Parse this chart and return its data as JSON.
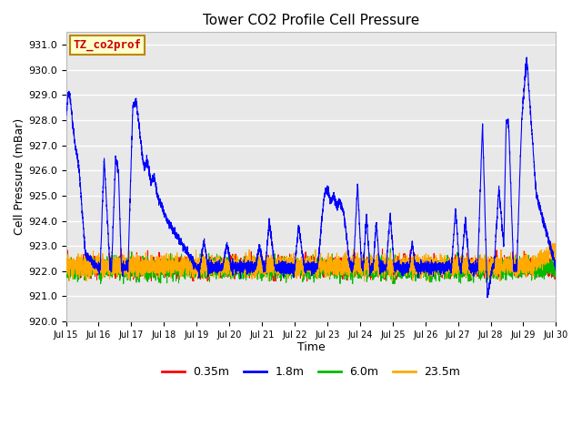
{
  "title": "Tower CO2 Profile Cell Pressure",
  "xlabel": "Time",
  "ylabel": "Cell Pressure (mBar)",
  "ylim": [
    920.0,
    931.5
  ],
  "yticks": [
    920.0,
    921.0,
    922.0,
    923.0,
    924.0,
    925.0,
    926.0,
    927.0,
    928.0,
    929.0,
    930.0,
    931.0
  ],
  "xtick_labels": [
    "Jul 15",
    "Jul 16",
    "Jul 17",
    "Jul 18",
    "Jul 19",
    "Jul 20",
    "Jul 21",
    "Jul 22",
    "Jul 23",
    "Jul 24",
    "Jul 25",
    "Jul 26",
    "Jul 27",
    "Jul 28",
    "Jul 29",
    "Jul 30"
  ],
  "legend_labels": [
    "0.35m",
    "1.8m",
    "6.0m",
    "23.5m"
  ],
  "legend_colors": [
    "#ff0000",
    "#0000ff",
    "#00bb00",
    "#ffaa00"
  ],
  "background_color": "#ffffff",
  "plot_bg_color": "#e8e8e8",
  "grid_color": "#ffffff",
  "annotation_text": "TZ_co2prof",
  "annotation_bg": "#ffffcc",
  "annotation_border": "#bb8800",
  "annotation_color": "#cc0000",
  "title_fontsize": 11,
  "axis_fontsize": 9,
  "tick_fontsize": 8,
  "legend_fontsize": 9,
  "n_days": 15,
  "pts_per_day": 300,
  "base": 922.15
}
